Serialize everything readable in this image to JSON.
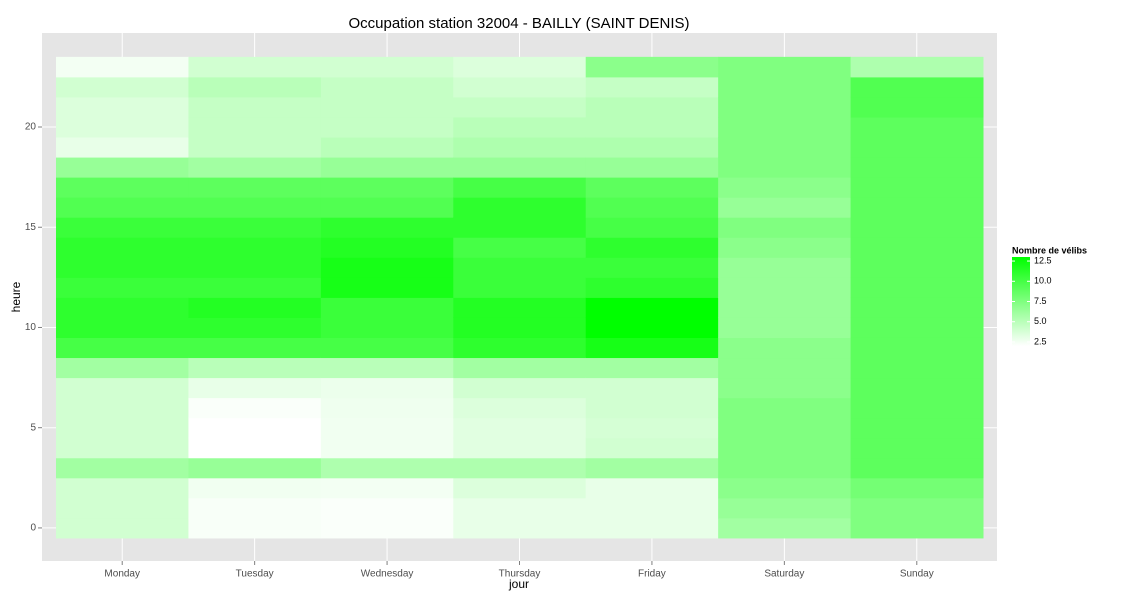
{
  "chart_data": {
    "type": "heatmap",
    "title": "Occupation station 32004 - BAILLY (SAINT DENIS)",
    "x_label": "jour",
    "y_label": "heure",
    "categories": [
      "Monday",
      "Tuesday",
      "Wednesday",
      "Thursday",
      "Friday",
      "Saturday",
      "Sunday"
    ],
    "y": [
      0,
      1,
      2,
      3,
      4,
      5,
      6,
      7,
      8,
      9,
      10,
      11,
      12,
      13,
      14,
      15,
      16,
      17,
      18,
      19,
      20,
      21,
      22,
      23
    ],
    "values": [
      [
        4,
        4,
        4,
        6,
        4,
        4,
        4,
        4,
        6,
        10,
        11,
        11,
        10.5,
        11,
        11,
        10.5,
        9.5,
        9,
        6.5,
        3,
        3.5,
        3.5,
        4,
        2.5
      ],
      [
        2.3,
        2.3,
        2.6,
        6.5,
        2,
        2,
        2.2,
        3,
        5,
        10,
        11,
        11.5,
        10.5,
        11,
        11,
        10.5,
        9.5,
        9,
        6,
        4.5,
        4.5,
        4.5,
        5,
        4
      ],
      [
        2.2,
        2.2,
        2.5,
        5.5,
        2.6,
        2.6,
        2.7,
        2.8,
        5,
        10,
        10.5,
        10.5,
        12,
        12,
        11.5,
        11,
        9.5,
        9,
        6.5,
        5,
        4.5,
        4.5,
        4.5,
        4
      ],
      [
        3,
        3,
        3.5,
        5.5,
        3.3,
        3.3,
        3.5,
        4,
        6,
        11,
        11.5,
        11.5,
        10.5,
        10.5,
        10,
        11,
        11,
        10,
        6.5,
        5.5,
        5,
        4.5,
        4,
        3.5
      ],
      [
        3,
        3,
        3,
        6,
        4,
        3.8,
        4,
        4,
        6,
        12,
        13,
        13,
        11,
        10.5,
        11,
        10,
        9.5,
        9,
        6.5,
        5.5,
        5,
        5,
        4.5,
        7
      ],
      [
        6,
        6.5,
        7,
        7.5,
        7.5,
        7.5,
        7.5,
        7,
        7,
        7,
        6.5,
        6.5,
        6.5,
        6.5,
        7,
        7.5,
        6.5,
        7,
        7.5,
        7.5,
        7.5,
        7.5,
        7.5,
        7.5
      ],
      [
        7.5,
        7.5,
        8,
        9,
        9,
        9,
        9,
        9,
        9,
        9,
        9,
        9,
        9,
        9,
        9,
        9,
        9,
        9,
        9,
        9,
        9,
        9.5,
        9.5,
        5.5
      ]
    ],
    "ylim": [
      -1.65,
      24.69
    ],
    "yticks": [
      0,
      5,
      10,
      15,
      20
    ],
    "grid": true,
    "color_low": "#ffffff",
    "color_high": "#00ff00",
    "colorlim": [
      2,
      13
    ],
    "legend": {
      "title": "Nombre de vélibs",
      "position": "right",
      "ticks": [
        2.5,
        {
          "value": 5,
          "label": "5.0"
        },
        7.5,
        {
          "value": 10,
          "label": "10.0"
        },
        12.5
      ]
    }
  }
}
